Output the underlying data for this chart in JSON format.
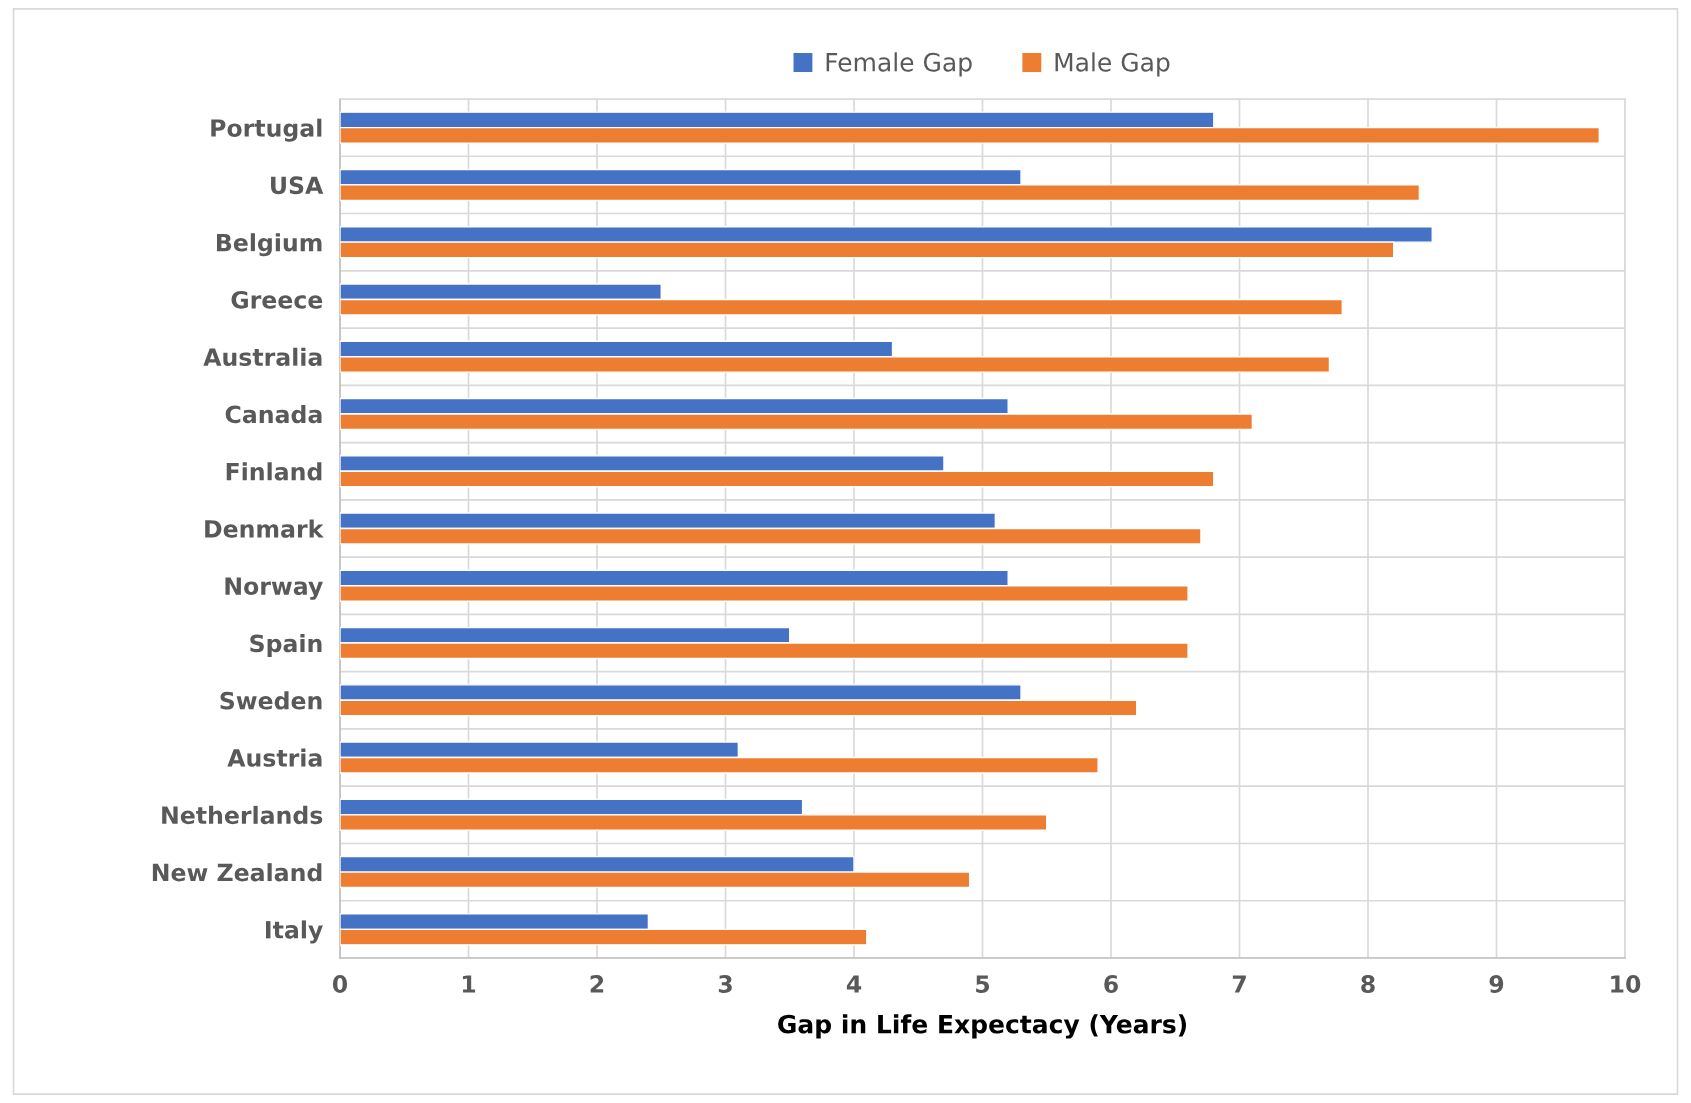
{
  "chart_data": {
    "type": "bar",
    "orientation": "horizontal",
    "xlabel": "Gap in Life Expectacy (Years)",
    "categories": [
      "Portugal",
      "USA",
      "Belgium",
      "Greece",
      "Australia",
      "Canada",
      "Finland",
      "Denmark",
      "Norway",
      "Spain",
      "Sweden",
      "Austria",
      "Netherlands",
      "New Zealand",
      "Italy"
    ],
    "series": [
      {
        "name": "Female Gap",
        "color": "#4472c4",
        "values": [
          6.8,
          5.3,
          8.5,
          2.5,
          4.3,
          5.2,
          4.7,
          5.1,
          5.2,
          3.5,
          5.3,
          3.1,
          3.6,
          4.0,
          2.4
        ]
      },
      {
        "name": "Male Gap",
        "color": "#ed7d31",
        "values": [
          9.8,
          8.4,
          8.2,
          7.8,
          7.7,
          7.1,
          6.8,
          6.7,
          6.6,
          6.6,
          6.2,
          5.9,
          5.5,
          4.9,
          4.1
        ]
      }
    ],
    "xlim": [
      0,
      10
    ],
    "xticks": [
      0,
      1,
      2,
      3,
      4,
      5,
      6,
      7,
      8,
      9,
      10
    ],
    "grid": true,
    "legend": "top"
  }
}
